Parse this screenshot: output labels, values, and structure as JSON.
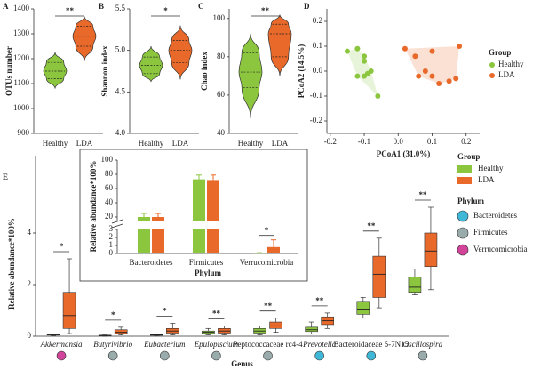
{
  "chart_data": [
    {
      "type": "violin",
      "panel": "A",
      "ylabel": "OTUs number",
      "ylim": [
        900,
        1400
      ],
      "yticks": [
        900,
        1000,
        1100,
        1200,
        1300,
        1400
      ],
      "series": [
        {
          "name": "Healthy",
          "color": "#8cc63f",
          "stats": {
            "min": 1080,
            "q1": 1120,
            "median": 1150,
            "q3": 1185,
            "max": 1225
          }
        },
        {
          "name": "LDA",
          "color": "#e8692a",
          "stats": {
            "min": 1190,
            "q1": 1250,
            "median": 1290,
            "q3": 1330,
            "max": 1370
          }
        }
      ],
      "significance": "**"
    },
    {
      "type": "violin",
      "panel": "B",
      "ylabel": "Shannon index",
      "ylim": [
        4.0,
        5.5
      ],
      "yticks": [
        {
          "value": 4,
          "label": "4.0"
        },
        {
          "value": 4.5,
          "label": "4.5"
        },
        {
          "value": 5,
          "label": "5.0"
        },
        {
          "value": 5.5,
          "label": "5.5"
        }
      ],
      "series": [
        {
          "name": "Healthy",
          "color": "#8cc63f",
          "stats": {
            "min": 4.62,
            "q1": 4.72,
            "median": 4.82,
            "q3": 4.92,
            "max": 5.05
          }
        },
        {
          "name": "LDA",
          "color": "#e8692a",
          "stats": {
            "min": 4.65,
            "q1": 4.85,
            "median": 5.0,
            "q3": 5.12,
            "max": 5.3
          }
        }
      ],
      "significance": "*"
    },
    {
      "type": "violin",
      "panel": "C",
      "ylabel": "Chao index",
      "ylim": [
        40,
        105
      ],
      "yticks": [
        40,
        60,
        80,
        100
      ],
      "series": [
        {
          "name": "Healthy",
          "color": "#8cc63f",
          "stats": {
            "min": 48,
            "q1": 64,
            "median": 72,
            "q3": 82,
            "max": 92
          }
        },
        {
          "name": "LDA",
          "color": "#e8692a",
          "stats": {
            "min": 70,
            "q1": 80,
            "median": 92,
            "q3": 97,
            "max": 102
          }
        }
      ],
      "significance": "**"
    },
    {
      "type": "scatter",
      "panel": "D",
      "xlabel": "PCoA1 (31.0%)",
      "ylabel": "PCoA2 (14.5%)",
      "legend_title": "Group",
      "xlim": [
        -0.21,
        0.24
      ],
      "ylim": [
        -0.25,
        0.25
      ],
      "xticks": [
        {
          "value": -0.2,
          "label": "-0.2"
        },
        {
          "value": -0.1,
          "label": "-0.1"
        },
        {
          "value": 0,
          "label": "0.0"
        },
        {
          "value": 0.1,
          "label": "0.1"
        },
        {
          "value": 0.2,
          "label": "0.2"
        }
      ],
      "yticks": [
        {
          "value": -0.2,
          "label": "-0.2"
        },
        {
          "value": -0.1,
          "label": "-0.1"
        },
        {
          "value": 0,
          "label": "0.0"
        },
        {
          "value": 0.1,
          "label": "0.1"
        },
        {
          "value": 0.2,
          "label": "0.2"
        }
      ],
      "series": [
        {
          "name": "Healthy",
          "color": "#8cc63f",
          "x": [
            -0.15,
            -0.12,
            -0.1,
            -0.1,
            -0.08,
            -0.1,
            -0.12,
            -0.09,
            -0.06
          ],
          "y": [
            0.08,
            0.09,
            0.06,
            0.04,
            0.0,
            -0.02,
            -0.02,
            -0.01,
            -0.1
          ]
        },
        {
          "name": "LDA",
          "color": "#e8692a",
          "x": [
            0.02,
            0.05,
            0.1,
            0.18,
            0.08,
            0.1,
            0.15,
            0.17,
            0.12,
            0.06
          ],
          "y": [
            0.09,
            0.06,
            0.08,
            0.1,
            0.0,
            -0.02,
            -0.04,
            -0.03,
            -0.05,
            -0.02
          ]
        }
      ]
    },
    {
      "type": "box",
      "panel": "E",
      "xlabel": "Genus",
      "ylabel": "Relative abundance*100%",
      "ylim": [
        0,
        7
      ],
      "yticks": [
        0,
        2,
        4
      ],
      "categories": [
        "Akkermansia",
        "Butyrivibrio",
        "Eubacterium",
        "Epulopiscium",
        "Peptococcaceae rc4-4",
        "Prevotella",
        "Bacteroidaceae 5-7N15",
        "Oscillospira"
      ],
      "italic": [
        true,
        true,
        true,
        true,
        false,
        true,
        false,
        true
      ],
      "series": [
        {
          "name": "Healthy",
          "color": "#8cc63f",
          "boxes": [
            [
              0.02,
              0.04,
              0.05,
              0.07,
              0.09
            ],
            [
              0.0,
              0.02,
              0.03,
              0.04,
              0.05
            ],
            [
              0.02,
              0.04,
              0.05,
              0.06,
              0.08
            ],
            [
              0.05,
              0.1,
              0.15,
              0.2,
              0.3
            ],
            [
              0.05,
              0.12,
              0.2,
              0.3,
              0.4
            ],
            [
              0.08,
              0.18,
              0.25,
              0.35,
              0.55
            ],
            [
              0.7,
              0.85,
              1.05,
              1.35,
              1.5
            ],
            [
              1.6,
              1.7,
              1.9,
              2.3,
              2.6
            ]
          ]
        },
        {
          "name": "LDA",
          "color": "#e8692a",
          "boxes": [
            [
              0.1,
              0.3,
              0.8,
              1.7,
              3.0
            ],
            [
              0.05,
              0.1,
              0.15,
              0.25,
              0.35
            ],
            [
              0.05,
              0.12,
              0.2,
              0.3,
              0.5
            ],
            [
              0.05,
              0.12,
              0.2,
              0.3,
              0.4
            ],
            [
              0.15,
              0.3,
              0.4,
              0.55,
              0.7
            ],
            [
              0.3,
              0.45,
              0.6,
              0.75,
              0.9
            ],
            [
              1.1,
              1.5,
              2.4,
              3.1,
              3.8
            ],
            [
              1.8,
              2.7,
              3.3,
              4.0,
              5.0
            ]
          ]
        }
      ],
      "significance": [
        "*",
        "*",
        "*",
        "**",
        "**",
        "**",
        "**",
        "**"
      ],
      "legend_title": "Group",
      "phylum_title": "Phylum",
      "phyla": [
        {
          "name": "Bacteroidetes",
          "color": "#3fb8d8"
        },
        {
          "name": "Firmicutes",
          "color": "#9aabab"
        },
        {
          "name": "Verrucomicrobia",
          "color": "#d2449a"
        }
      ],
      "phylum_of_genus": [
        2,
        1,
        1,
        1,
        1,
        0,
        0,
        1
      ]
    },
    {
      "type": "broken_bar",
      "xlabel": "Phylum",
      "ylabel": "Relative abundance*100%",
      "categories": [
        "Bacteroidetes",
        "Firmicutes",
        "Verrucomicrobia"
      ],
      "ylim_lower": [
        0,
        3
      ],
      "yticks_lower": [
        0,
        1,
        2,
        3
      ],
      "ylim_upper": [
        15,
        100
      ],
      "yticks_upper": [
        20,
        40,
        60,
        80,
        100
      ],
      "series": [
        {
          "name": "Healthy",
          "color": "#8cc63f",
          "values": [
            20,
            73,
            0.05
          ],
          "errors": [
            5,
            6,
            0.05
          ]
        },
        {
          "name": "LDA",
          "color": "#e8692a",
          "values": [
            20,
            72,
            0.8
          ],
          "errors": [
            5,
            7,
            0.9
          ]
        }
      ],
      "significance": [
        {
          "category": 2,
          "label": "*"
        }
      ]
    }
  ]
}
